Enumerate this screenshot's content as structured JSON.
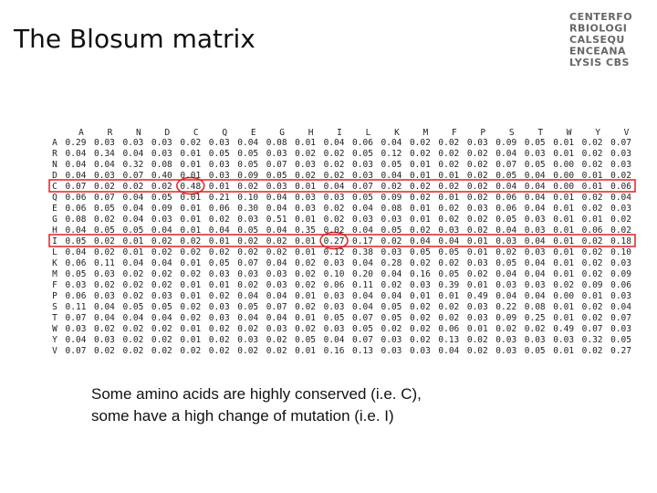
{
  "header": {
    "title": "The Blosum matrix",
    "logo": [
      "CENTERFO",
      "RBIOLOGI",
      "CALSEQU",
      "ENCEANA",
      "LYSIS CBS"
    ]
  },
  "table": {
    "columns": [
      "A",
      "R",
      "N",
      "D",
      "C",
      "Q",
      "E",
      "G",
      "H",
      "I",
      "L",
      "K",
      "M",
      "F",
      "P",
      "S",
      "T",
      "W",
      "Y",
      "V"
    ],
    "rows": [
      {
        "label": "A",
        "values": [
          "0.29",
          "0.03",
          "0.03",
          "0.03",
          "0.02",
          "0.03",
          "0.04",
          "0.08",
          "0.01",
          "0.04",
          "0.06",
          "0.04",
          "0.02",
          "0.02",
          "0.03",
          "0.09",
          "0.05",
          "0.01",
          "0.02",
          "0.07"
        ]
      },
      {
        "label": "R",
        "values": [
          "0.04",
          "0.34",
          "0.04",
          "0.03",
          "0.01",
          "0.05",
          "0.05",
          "0.03",
          "0.02",
          "0.02",
          "0.05",
          "0.12",
          "0.02",
          "0.02",
          "0.02",
          "0.04",
          "0.03",
          "0.01",
          "0.02",
          "0.03"
        ]
      },
      {
        "label": "N",
        "values": [
          "0.04",
          "0.04",
          "0.32",
          "0.08",
          "0.01",
          "0.03",
          "0.05",
          "0.07",
          "0.03",
          "0.02",
          "0.03",
          "0.05",
          "0.01",
          "0.02",
          "0.02",
          "0.07",
          "0.05",
          "0.00",
          "0.02",
          "0.03"
        ]
      },
      {
        "label": "D",
        "values": [
          "0.04",
          "0.03",
          "0.07",
          "0.40",
          "0.01",
          "0.03",
          "0.09",
          "0.05",
          "0.02",
          "0.02",
          "0.03",
          "0.04",
          "0.01",
          "0.01",
          "0.02",
          "0.05",
          "0.04",
          "0.00",
          "0.01",
          "0.02"
        ]
      },
      {
        "label": "C",
        "values": [
          "0.07",
          "0.02",
          "0.02",
          "0.02",
          "0.48",
          "0.01",
          "0.02",
          "0.03",
          "0.01",
          "0.04",
          "0.07",
          "0.02",
          "0.02",
          "0.02",
          "0.02",
          "0.04",
          "0.04",
          "0.00",
          "0.01",
          "0.06"
        ]
      },
      {
        "label": "Q",
        "values": [
          "0.06",
          "0.07",
          "0.04",
          "0.05",
          "0.01",
          "0.21",
          "0.10",
          "0.04",
          "0.03",
          "0.03",
          "0.05",
          "0.09",
          "0.02",
          "0.01",
          "0.02",
          "0.06",
          "0.04",
          "0.01",
          "0.02",
          "0.04"
        ]
      },
      {
        "label": "E",
        "values": [
          "0.06",
          "0.05",
          "0.04",
          "0.09",
          "0.01",
          "0.06",
          "0.30",
          "0.04",
          "0.03",
          "0.02",
          "0.04",
          "0.08",
          "0.01",
          "0.02",
          "0.03",
          "0.06",
          "0.04",
          "0.01",
          "0.02",
          "0.03"
        ]
      },
      {
        "label": "G",
        "values": [
          "0.08",
          "0.02",
          "0.04",
          "0.03",
          "0.01",
          "0.02",
          "0.03",
          "0.51",
          "0.01",
          "0.02",
          "0.03",
          "0.03",
          "0.01",
          "0.02",
          "0.02",
          "0.05",
          "0.03",
          "0.01",
          "0.01",
          "0.02"
        ]
      },
      {
        "label": "H",
        "values": [
          "0.04",
          "0.05",
          "0.05",
          "0.04",
          "0.01",
          "0.04",
          "0.05",
          "0.04",
          "0.35",
          "0.02",
          "0.04",
          "0.05",
          "0.02",
          "0.03",
          "0.02",
          "0.04",
          "0.03",
          "0.01",
          "0.06",
          "0.02"
        ]
      },
      {
        "label": "I",
        "values": [
          "0.05",
          "0.02",
          "0.01",
          "0.02",
          "0.02",
          "0.01",
          "0.02",
          "0.02",
          "0.01",
          "0.27",
          "0.17",
          "0.02",
          "0.04",
          "0.04",
          "0.01",
          "0.03",
          "0.04",
          "0.01",
          "0.02",
          "0.18"
        ]
      },
      {
        "label": "L",
        "values": [
          "0.04",
          "0.02",
          "0.01",
          "0.02",
          "0.02",
          "0.02",
          "0.02",
          "0.02",
          "0.01",
          "0.12",
          "0.38",
          "0.03",
          "0.05",
          "0.05",
          "0.01",
          "0.02",
          "0.03",
          "0.01",
          "0.02",
          "0.10"
        ]
      },
      {
        "label": "K",
        "values": [
          "0.06",
          "0.11",
          "0.04",
          "0.04",
          "0.01",
          "0.05",
          "0.07",
          "0.04",
          "0.02",
          "0.03",
          "0.04",
          "0.28",
          "0.02",
          "0.02",
          "0.03",
          "0.05",
          "0.04",
          "0.01",
          "0.02",
          "0.03"
        ]
      },
      {
        "label": "M",
        "values": [
          "0.05",
          "0.03",
          "0.02",
          "0.02",
          "0.02",
          "0.03",
          "0.03",
          "0.03",
          "0.02",
          "0.10",
          "0.20",
          "0.04",
          "0.16",
          "0.05",
          "0.02",
          "0.04",
          "0.04",
          "0.01",
          "0.02",
          "0.09"
        ]
      },
      {
        "label": "F",
        "values": [
          "0.03",
          "0.02",
          "0.02",
          "0.02",
          "0.01",
          "0.01",
          "0.02",
          "0.03",
          "0.02",
          "0.06",
          "0.11",
          "0.02",
          "0.03",
          "0.39",
          "0.01",
          "0.03",
          "0.03",
          "0.02",
          "0.09",
          "0.06"
        ]
      },
      {
        "label": "P",
        "values": [
          "0.06",
          "0.03",
          "0.02",
          "0.03",
          "0.01",
          "0.02",
          "0.04",
          "0.04",
          "0.01",
          "0.03",
          "0.04",
          "0.04",
          "0.01",
          "0.01",
          "0.49",
          "0.04",
          "0.04",
          "0.00",
          "0.01",
          "0.03"
        ]
      },
      {
        "label": "S",
        "values": [
          "0.11",
          "0.04",
          "0.05",
          "0.05",
          "0.02",
          "0.03",
          "0.05",
          "0.07",
          "0.02",
          "0.03",
          "0.04",
          "0.05",
          "0.02",
          "0.02",
          "0.03",
          "0.22",
          "0.08",
          "0.01",
          "0.02",
          "0.04"
        ]
      },
      {
        "label": "T",
        "values": [
          "0.07",
          "0.04",
          "0.04",
          "0.04",
          "0.02",
          "0.03",
          "0.04",
          "0.04",
          "0.01",
          "0.05",
          "0.07",
          "0.05",
          "0.02",
          "0.02",
          "0.03",
          "0.09",
          "0.25",
          "0.01",
          "0.02",
          "0.07"
        ]
      },
      {
        "label": "W",
        "values": [
          "0.03",
          "0.02",
          "0.02",
          "0.02",
          "0.01",
          "0.02",
          "0.02",
          "0.03",
          "0.02",
          "0.03",
          "0.05",
          "0.02",
          "0.02",
          "0.06",
          "0.01",
          "0.02",
          "0.02",
          "0.49",
          "0.07",
          "0.03"
        ]
      },
      {
        "label": "Y",
        "values": [
          "0.04",
          "0.03",
          "0.02",
          "0.02",
          "0.01",
          "0.02",
          "0.03",
          "0.02",
          "0.05",
          "0.04",
          "0.07",
          "0.03",
          "0.02",
          "0.13",
          "0.02",
          "0.03",
          "0.03",
          "0.03",
          "0.32",
          "0.05"
        ]
      },
      {
        "label": "V",
        "values": [
          "0.07",
          "0.02",
          "0.02",
          "0.02",
          "0.02",
          "0.02",
          "0.02",
          "0.02",
          "0.01",
          "0.16",
          "0.13",
          "0.03",
          "0.03",
          "0.04",
          "0.02",
          "0.03",
          "0.05",
          "0.01",
          "0.02",
          "0.27"
        ]
      }
    ]
  },
  "caption": [
    "Some amino acids are highly conserved (i.e. C),",
    "some have a high change of mutation (i.e. I)"
  ]
}
